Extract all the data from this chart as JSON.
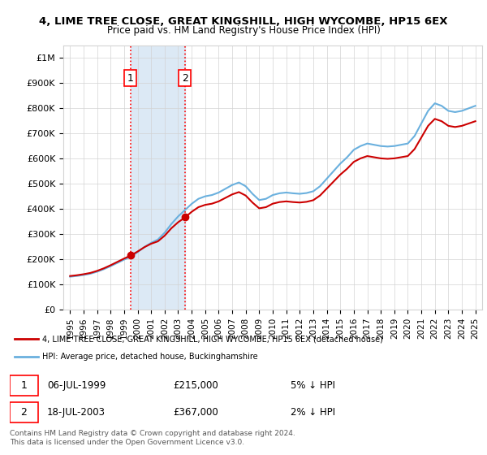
{
  "title1": "4, LIME TREE CLOSE, GREAT KINGSHILL, HIGH WYCOMBE, HP15 6EX",
  "title2": "Price paid vs. HM Land Registry's House Price Index (HPI)",
  "legend_line1": "4, LIME TREE CLOSE, GREAT KINGSHILL, HIGH WYCOMBE, HP15 6EX (detached house)",
  "legend_line2": "HPI: Average price, detached house, Buckinghamshire",
  "footnote": "Contains HM Land Registry data © Crown copyright and database right 2024.\nThis data is licensed under the Open Government Licence v3.0.",
  "sale1_date": "06-JUL-1999",
  "sale1_price": 215000,
  "sale1_note": "5% ↓ HPI",
  "sale2_date": "18-JUL-2003",
  "sale2_price": 367000,
  "sale2_note": "2% ↓ HPI",
  "sale1_x": 1999.51,
  "sale2_x": 2003.54,
  "hpi_color": "#6ab0de",
  "price_color": "#cc0000",
  "shade_color": "#dce9f5",
  "ylim": [
    0,
    1050000
  ],
  "yticks": [
    0,
    100000,
    200000,
    300000,
    400000,
    500000,
    600000,
    700000,
    800000,
    900000,
    1000000
  ],
  "ytick_labels": [
    "£0",
    "£100K",
    "£200K",
    "£300K",
    "£400K",
    "£500K",
    "£600K",
    "£700K",
    "£800K",
    "£900K",
    "£1M"
  ],
  "xlim_start": 1994.5,
  "xlim_end": 2025.5
}
